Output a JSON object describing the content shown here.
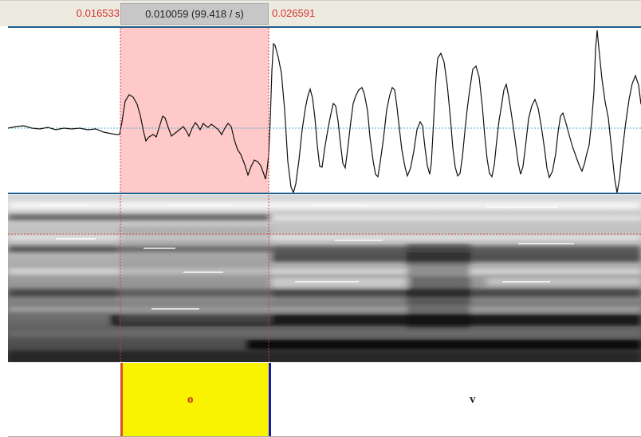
{
  "selection": {
    "start_time": "0.016533",
    "duration_label": "0.010059 (99.418 / s)",
    "end_time": "0.026591"
  },
  "tier": {
    "intervals": [
      {
        "label": "o"
      },
      {
        "label": "v"
      }
    ]
  },
  "colors": {
    "selection_fill": "#ffc9c9",
    "cursor": "#d93a3a",
    "interval_highlight": "#f9f200",
    "boundary_left": "#e0502a",
    "boundary_right": "#1414c8",
    "divider": "#1f5e8c",
    "zero_line": "#3aaed0"
  }
}
